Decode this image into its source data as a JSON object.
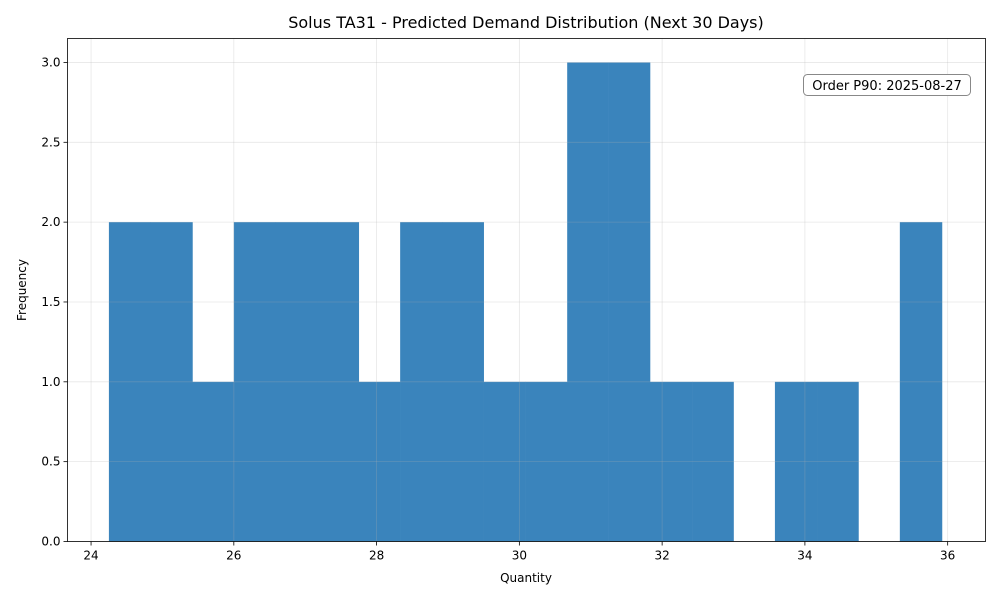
{
  "chart_data": {
    "type": "bar",
    "subtype": "histogram",
    "title": "Solus TA31 - Predicted Demand Distribution (Next 30 Days)",
    "xlabel": "Quantity",
    "ylabel": "Frequency",
    "xlim": [
      23.67,
      36.53
    ],
    "ylim": [
      0,
      3.15
    ],
    "xticks": [
      24,
      26,
      28,
      30,
      32,
      34,
      36
    ],
    "xtick_labels": [
      "24",
      "26",
      "28",
      "30",
      "32",
      "34",
      "36"
    ],
    "yticks": [
      0,
      0.5,
      1.0,
      1.5,
      2.0,
      2.5,
      3.0
    ],
    "ytick_labels": [
      "0.0",
      "0.5",
      "1.0",
      "1.5",
      "2.0",
      "2.5",
      "3.0"
    ],
    "grid": true,
    "bar_color": "#3a84bc",
    "bins": [
      {
        "x0": 24.25,
        "x1": 24.83,
        "value": 2
      },
      {
        "x0": 24.83,
        "x1": 25.42,
        "value": 2
      },
      {
        "x0": 25.42,
        "x1": 26.0,
        "value": 1
      },
      {
        "x0": 26.0,
        "x1": 26.58,
        "value": 2
      },
      {
        "x0": 26.58,
        "x1": 27.17,
        "value": 2
      },
      {
        "x0": 27.17,
        "x1": 27.75,
        "value": 2
      },
      {
        "x0": 27.75,
        "x1": 28.33,
        "value": 1
      },
      {
        "x0": 28.33,
        "x1": 28.92,
        "value": 2
      },
      {
        "x0": 28.92,
        "x1": 29.5,
        "value": 2
      },
      {
        "x0": 29.5,
        "x1": 30.08,
        "value": 1
      },
      {
        "x0": 30.08,
        "x1": 30.67,
        "value": 1
      },
      {
        "x0": 30.67,
        "x1": 31.25,
        "value": 3
      },
      {
        "x0": 31.25,
        "x1": 31.83,
        "value": 3
      },
      {
        "x0": 31.83,
        "x1": 32.42,
        "value": 1
      },
      {
        "x0": 32.42,
        "x1": 33.0,
        "value": 1
      },
      {
        "x0": 33.0,
        "x1": 33.58,
        "value": 0
      },
      {
        "x0": 33.58,
        "x1": 34.17,
        "value": 1
      },
      {
        "x0": 34.17,
        "x1": 34.75,
        "value": 1
      },
      {
        "x0": 34.75,
        "x1": 35.33,
        "value": 0
      },
      {
        "x0": 35.33,
        "x1": 35.92,
        "value": 2
      }
    ],
    "annotations": [
      {
        "text": "Order P90: 2025-08-27",
        "placement": "top-right"
      }
    ]
  }
}
